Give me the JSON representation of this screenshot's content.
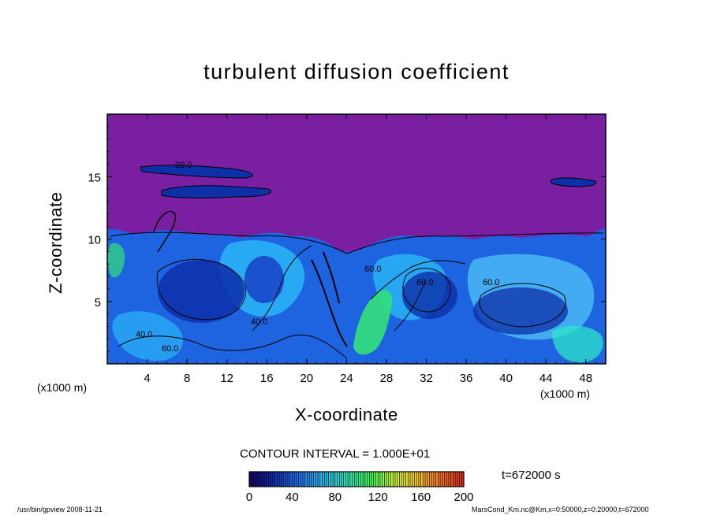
{
  "chart_data": {
    "type": "heatmap",
    "title": "turbulent diffusion coefficient",
    "xlabel": "X-coordinate",
    "ylabel": "Z-coordinate",
    "x_unit": "(x1000 m)",
    "x_ticks": [
      4,
      8,
      12,
      16,
      20,
      24,
      28,
      32,
      36,
      40,
      44,
      48
    ],
    "y_ticks": [
      5,
      10,
      15
    ],
    "xlim": [
      0,
      50
    ],
    "ylim": [
      0,
      20
    ],
    "contour_interval": "CONTOUR INTERVAL = 1.000E+01",
    "contour_labels": [
      "20.0",
      "60.0",
      "60.0",
      "60.0",
      "40.0",
      "40.0",
      "60.0"
    ],
    "colorbar": {
      "ticks": [
        0,
        40,
        80,
        120,
        160,
        200
      ],
      "range": [
        0,
        200
      ],
      "colors": [
        "#1a0066",
        "#0b2fb0",
        "#1c6ff0",
        "#29b6f6",
        "#2ee6c8",
        "#33ff66",
        "#c8ff33",
        "#ffd21a",
        "#ff7a1a",
        "#e02a1a"
      ]
    },
    "field_color_background": "#7b1fa2"
  },
  "labels": {
    "time": "t=672000 s",
    "footer_left": "/usr/bin/gpview   2008-11-21",
    "footer_right": "MarsCond_Km.nc@Km,x=0:50000,z=0:20000,t=672000"
  }
}
